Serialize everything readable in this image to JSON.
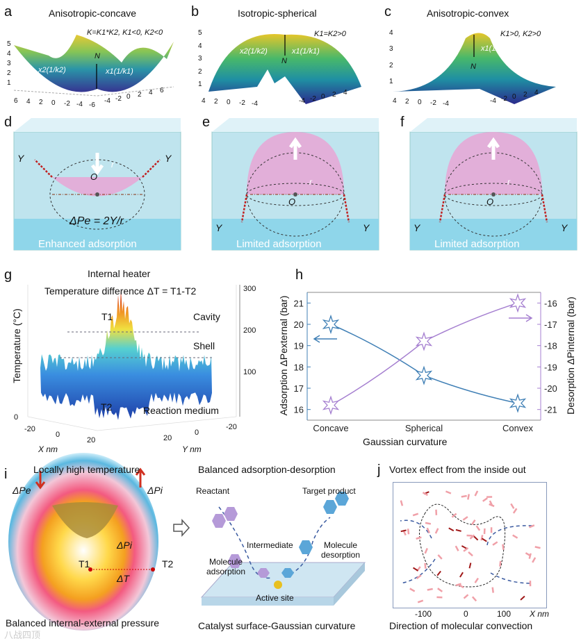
{
  "panels": {
    "a": {
      "letter": "a",
      "title": "Anisotropic-concave",
      "condition": "K=K1*K2, K1<0, K2<0",
      "x2": "x2(1/k2)",
      "x1": "x1(1/k1)",
      "normal": "N",
      "zticks": [
        "5",
        "4",
        "3",
        "2",
        "1"
      ],
      "xticks": [
        "6",
        "4",
        "2",
        "0",
        "-2",
        "-4",
        "-6"
      ],
      "yticks": [
        "-4",
        "-2",
        "0",
        "2",
        "4",
        "6"
      ]
    },
    "b": {
      "letter": "b",
      "title": "Isotropic-spherical",
      "condition": "K1=K2>0",
      "x2": "x2(1/k2)",
      "x1": "x1(1/k1)",
      "normal": "N",
      "zticks": [
        "5",
        "4",
        "3",
        "2",
        "1"
      ],
      "xticks": [
        "4",
        "2",
        "0",
        "-2",
        "-4"
      ],
      "yticks": [
        "-4",
        "-2",
        "0",
        "2",
        "4"
      ]
    },
    "c": {
      "letter": "c",
      "title": "Anisotropic-convex",
      "condition": "K1>0, K2>0",
      "x2": "x2(1/k2)",
      "x1": "x1(1/k1)",
      "normal": "N",
      "zticks": [
        "4",
        "3",
        "2",
        "1"
      ],
      "xticks": [
        "4",
        "2",
        "0",
        "-2",
        "-4"
      ],
      "yticks": [
        "-4",
        "-2",
        "0",
        "2",
        "4"
      ]
    },
    "d": {
      "letter": "d",
      "gamma": "Υ",
      "center": "O",
      "radius": "r",
      "equation": "ΔPe = 2Υ/r",
      "caption": "Enhanced adsorption"
    },
    "e": {
      "letter": "e",
      "gamma": "Υ",
      "center": "O",
      "radius": "r",
      "caption": "Limited adsorption"
    },
    "f": {
      "letter": "f",
      "gamma": "Υ",
      "center": "O",
      "radius": "r",
      "caption": "Limited adsorption"
    },
    "g": {
      "letter": "g",
      "title": "Internal heater",
      "subtitle": "Temperature difference ΔT = T1-T2",
      "ylabel": "Temperature (°C)",
      "t1": "T1",
      "t2": "T2",
      "cavity": "Cavity",
      "shell": "Shell",
      "medium": "Reaction medium",
      "zticks": [
        "300",
        "200",
        "100",
        "0"
      ],
      "xticks": [
        "-20",
        "0",
        "20"
      ],
      "yticks": [
        "20",
        "0",
        "-20"
      ],
      "xlabel": "X nm",
      "ylabel2": "Y nm"
    },
    "i": {
      "letter": "i",
      "title": "Locally high temperature",
      "dpe": "ΔPe",
      "dpi": "ΔPi",
      "dpi_inner": "ΔPi",
      "dt": "ΔT",
      "t1": "T1",
      "t2": "T2",
      "caption": "Balanced internal-external pressure",
      "title2": "Balanced adsorption-desorption",
      "reactant": "Reactant",
      "product": "Target product",
      "intermediate": "Intermediate",
      "adsorption": "Molecule adsorption",
      "desorption": "Molecule desorption",
      "active_site": "Active site",
      "caption2": "Catalyst surface-Gaussian curvature"
    },
    "j": {
      "letter": "j",
      "title": "Vortex effect from the inside out",
      "xticks": [
        "-100",
        "0",
        "100"
      ],
      "xlabel": "X nm",
      "caption": "Direction of molecular convection"
    }
  },
  "watermark": "八战四顶",
  "chart_data": {
    "type": "line",
    "letter": "h",
    "categories": [
      "Concave",
      "Spherical",
      "Convex"
    ],
    "xlabel": "Gaussian curvature",
    "ylabel": "Adsorption ΔPexternal (bar)",
    "ylabel_right": "Desorption ΔPinternal (bar)",
    "ylim": [
      15.5,
      21.5
    ],
    "ylim_right": [
      -21.5,
      -15.5
    ],
    "yticks": [
      16,
      17,
      18,
      19,
      20,
      21
    ],
    "yticks_right": [
      -21,
      -20,
      -19,
      -18,
      -17,
      -16
    ],
    "series": [
      {
        "name": "Adsorption ΔPexternal",
        "axis": "left",
        "color": "#3f7fb5",
        "values": [
          20.0,
          17.6,
          16.3
        ]
      },
      {
        "name": "Desorption ΔPinternal",
        "axis": "right",
        "color": "#a57fd0",
        "values": [
          -20.8,
          -17.8,
          -16.0
        ]
      }
    ],
    "grid": false
  }
}
